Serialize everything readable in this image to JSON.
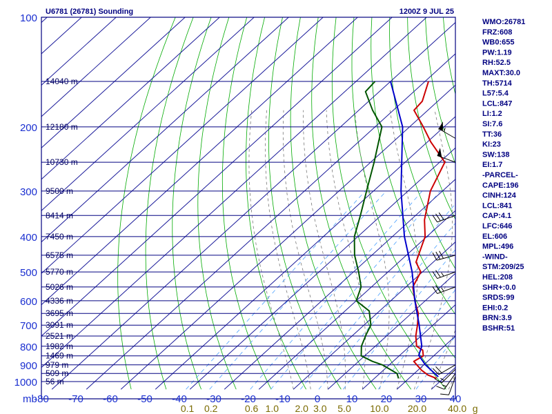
{
  "header": {
    "title": "U6781 (26781) Sounding",
    "valid_time": "1200Z  9 JUL 25"
  },
  "colors": {
    "axis_frame": "#000080",
    "label_blue": "#1a2fd0",
    "isotherm": "#1a1a9a",
    "dry_adiabat": "#00aa00",
    "moist_adiabat": "#777777",
    "mixing_ratio": "#4aa0ff",
    "temperature": "#cc0000",
    "dewpoint": "#005500",
    "parcel": "#0000cc",
    "mixing_label": "#7a6a00",
    "stats_text": "#000080"
  },
  "stats": [
    "WMO:26781",
    "FRZ:608",
    "WB0:655",
    "PW:1.19",
    "RH:52.5",
    "MAXT:30.0",
    "TH:5714",
    "L57:5.4",
    "LCL:847",
    "LI:1.2",
    "SI:7.6",
    "TT:36",
    "KI:23",
    "SW:138",
    "EI:1.7",
    "-PARCEL-",
    "CAPE:196",
    "CINH:124",
    "LCL:841",
    "CAP:4.1",
    "LFC:646",
    "EL:606",
    "MPL:496",
    "-WIND-",
    "STM:209/25",
    "HEL:208",
    "SHR+:0.0",
    "SRDS:99",
    "EHI:0.2",
    "BRN:3.9",
    "BSHR:51"
  ],
  "chart_data": {
    "type": "skew-t",
    "pressure_unit_label": "mb",
    "y_ticks": [
      100,
      200,
      300,
      400,
      500,
      600,
      700,
      800,
      900,
      1000
    ],
    "y_tick_labels": [
      "100",
      "200",
      "300",
      "400",
      "500",
      "600",
      "700",
      "800",
      "900",
      "1000"
    ],
    "x_ticks": [
      -80,
      -70,
      -60,
      -50,
      -40,
      -30,
      -20,
      -10,
      0,
      10,
      20,
      30,
      40
    ],
    "x_tick_labels": [
      "-80",
      "-70",
      "-60",
      "-50",
      "-40",
      "-30",
      "-20",
      "-10",
      "0",
      "10",
      "20",
      "30",
      "40"
    ],
    "mixing_ratio_labels": [
      "0.1",
      "0.2",
      "0.6",
      "1.0",
      "2.0",
      "3.0",
      "5.0",
      "10.0",
      "20.0",
      "40.0",
      "g"
    ],
    "height_labels": [
      {
        "text": "14040 m",
        "p": 150
      },
      {
        "text": "12180 m",
        "p": 200
      },
      {
        "text": "10730 m",
        "p": 250
      },
      {
        "text": "9500 m",
        "p": 300
      },
      {
        "text": "8414 m",
        "p": 350
      },
      {
        "text": "7450 m",
        "p": 400
      },
      {
        "text": "6575 m",
        "p": 450
      },
      {
        "text": "5770 m",
        "p": 500
      },
      {
        "text": "5026 m",
        "p": 550
      },
      {
        "text": "4336 m",
        "p": 600
      },
      {
        "text": "3695 m",
        "p": 650
      },
      {
        "text": "3091 m",
        "p": 700
      },
      {
        "text": "2521 m",
        "p": 750
      },
      {
        "text": "1982 m",
        "p": 800
      },
      {
        "text": "1469 m",
        "p": 850
      },
      {
        "text": "979 m",
        "p": 900
      },
      {
        "text": "509 m",
        "p": 950
      },
      {
        "text": "56 m",
        "p": 1000
      }
    ],
    "series": [
      {
        "key": "temperature",
        "points": [
          {
            "p": 980,
            "t": 28
          },
          {
            "p": 960,
            "t": 24.5
          },
          {
            "p": 930,
            "t": 21
          },
          {
            "p": 900,
            "t": 18
          },
          {
            "p": 880,
            "t": 16
          },
          {
            "p": 850,
            "t": 17
          },
          {
            "p": 820,
            "t": 15
          },
          {
            "p": 800,
            "t": 12
          },
          {
            "p": 750,
            "t": 8.5
          },
          {
            "p": 700,
            "t": 5.5
          },
          {
            "p": 650,
            "t": 2
          },
          {
            "p": 600,
            "t": -3
          },
          {
            "p": 550,
            "t": -8
          },
          {
            "p": 500,
            "t": -10.5
          },
          {
            "p": 470,
            "t": -15
          },
          {
            "p": 400,
            "t": -20.5
          },
          {
            "p": 360,
            "t": -26
          },
          {
            "p": 300,
            "t": -33.5
          },
          {
            "p": 250,
            "t": -38.5
          },
          {
            "p": 220,
            "t": -49
          },
          {
            "p": 200,
            "t": -56
          },
          {
            "p": 180,
            "t": -64
          },
          {
            "p": 170,
            "t": -64.5
          },
          {
            "p": 150,
            "t": -69
          }
        ]
      },
      {
        "key": "dewpoint",
        "points": [
          {
            "p": 980,
            "t": 17
          },
          {
            "p": 950,
            "t": 15
          },
          {
            "p": 900,
            "t": 8
          },
          {
            "p": 880,
            "t": 4
          },
          {
            "p": 850,
            "t": -1
          },
          {
            "p": 800,
            "t": -4
          },
          {
            "p": 740,
            "t": -6.5
          },
          {
            "p": 700,
            "t": -8
          },
          {
            "p": 640,
            "t": -13
          },
          {
            "p": 600,
            "t": -20
          },
          {
            "p": 550,
            "t": -23
          },
          {
            "p": 500,
            "t": -28.5
          },
          {
            "p": 450,
            "t": -35
          },
          {
            "p": 400,
            "t": -41
          },
          {
            "p": 350,
            "t": -46
          },
          {
            "p": 300,
            "t": -52
          },
          {
            "p": 250,
            "t": -59
          },
          {
            "p": 200,
            "t": -68
          },
          {
            "p": 180,
            "t": -76
          },
          {
            "p": 160,
            "t": -84
          },
          {
            "p": 150,
            "t": -84.5
          }
        ]
      },
      {
        "key": "parcel",
        "points": [
          {
            "p": 970,
            "t": 28
          },
          {
            "p": 900,
            "t": 20.5
          },
          {
            "p": 847,
            "t": 15.5
          },
          {
            "p": 800,
            "t": 13.5
          },
          {
            "p": 700,
            "t": 6
          },
          {
            "p": 600,
            "t": -3
          },
          {
            "p": 500,
            "t": -13
          },
          {
            "p": 400,
            "t": -26.5
          },
          {
            "p": 300,
            "t": -42
          },
          {
            "p": 250,
            "t": -51
          },
          {
            "p": 200,
            "t": -62
          },
          {
            "p": 150,
            "t": -80
          }
        ]
      }
    ],
    "wind_barbs": [
      {
        "p": 970,
        "dir": 200,
        "speed": 10
      },
      {
        "p": 950,
        "dir": 215,
        "speed": 15
      },
      {
        "p": 925,
        "dir": 225,
        "speed": 15
      },
      {
        "p": 900,
        "dir": 240,
        "speed": 20
      },
      {
        "p": 550,
        "dir": 250,
        "speed": 25
      },
      {
        "p": 500,
        "dir": 250,
        "speed": 25
      },
      {
        "p": 450,
        "dir": 255,
        "speed": 30
      },
      {
        "p": 350,
        "dir": 250,
        "speed": 30
      },
      {
        "p": 250,
        "dir": 290,
        "speed": 50
      },
      {
        "p": 215,
        "dir": 300,
        "speed": 55
      }
    ]
  }
}
